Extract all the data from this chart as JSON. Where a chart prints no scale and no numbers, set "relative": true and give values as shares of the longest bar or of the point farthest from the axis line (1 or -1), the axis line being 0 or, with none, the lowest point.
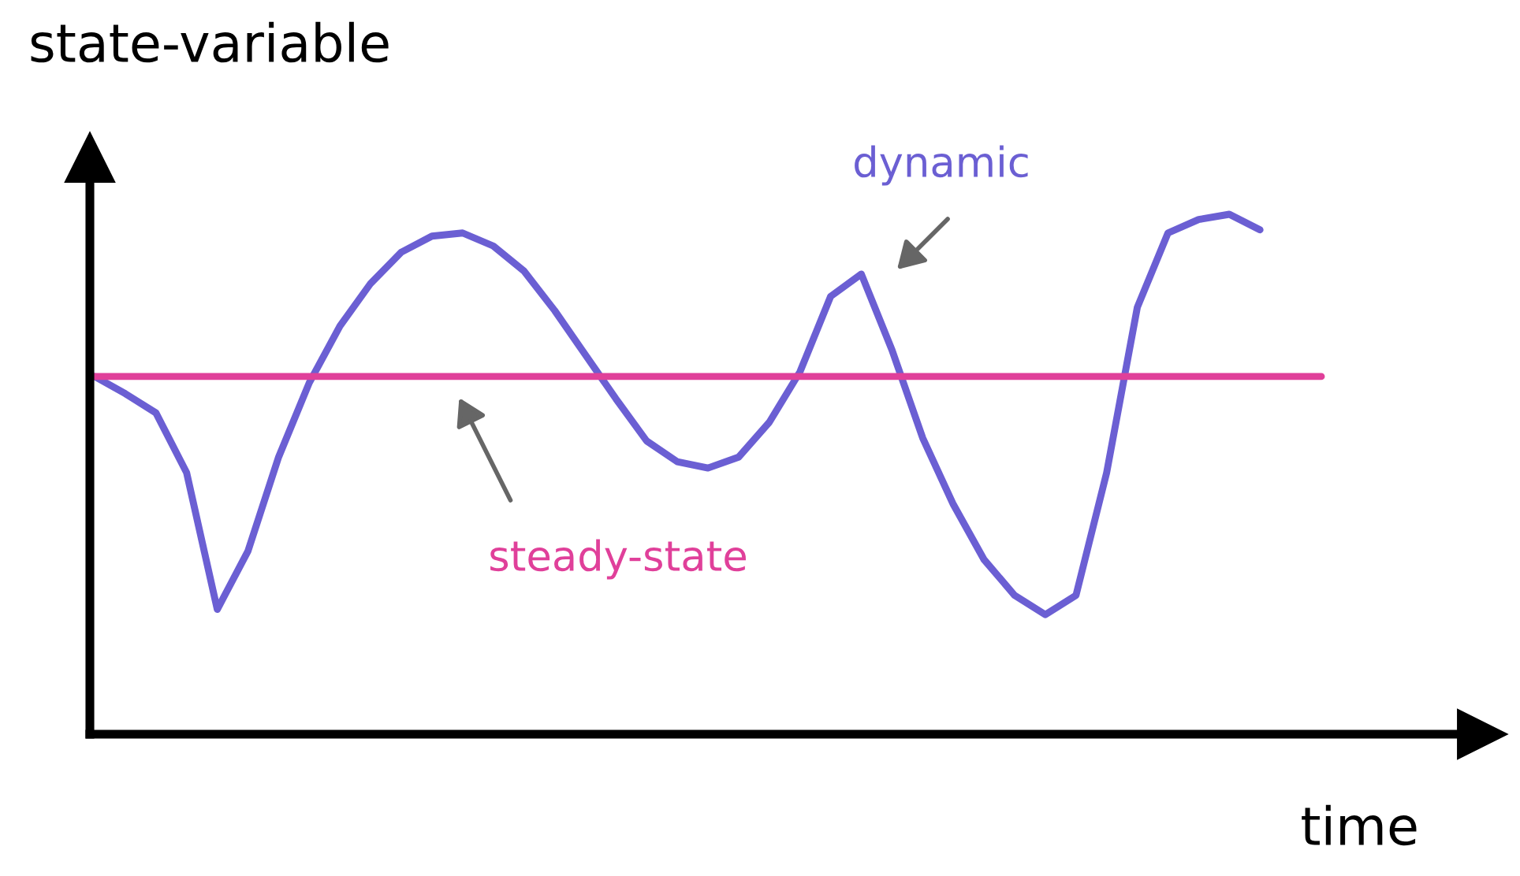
{
  "chart_data": {
    "type": "line",
    "relative": true,
    "xlabel": "time",
    "ylabel": "state-variable",
    "marker": "none",
    "line_style": "solid",
    "categories": [
      null,
      null,
      null,
      null,
      null,
      null,
      null,
      null,
      null,
      null,
      null,
      null,
      null,
      null,
      null,
      null,
      null,
      null,
      null,
      null,
      null,
      null,
      null,
      null,
      null,
      null,
      null,
      null,
      null,
      null,
      null,
      null,
      null,
      null,
      null,
      null,
      null,
      null,
      null,
      null,
      null
    ],
    "series": [
      {
        "name": "dynamic",
        "color": "#6b5fd3",
        "values": [
          0.688,
          0.655,
          0.618,
          0.503,
          0.24,
          0.352,
          0.533,
          0.676,
          0.785,
          0.867,
          0.927,
          0.958,
          0.964,
          0.939,
          0.891,
          0.815,
          0.73,
          0.645,
          0.564,
          0.524,
          0.512,
          0.533,
          0.6,
          0.697,
          0.842,
          0.885,
          0.739,
          0.57,
          0.442,
          0.336,
          0.267,
          0.23,
          0.267,
          0.503,
          0.821,
          0.964,
          0.99,
          1.0,
          0.97,
          null,
          null
        ]
      },
      {
        "name": "steady-state",
        "color": "#e0409a",
        "values": [
          0.688,
          0.688,
          0.688,
          0.688,
          0.688,
          0.688,
          0.688,
          0.688,
          0.688,
          0.688,
          0.688,
          0.688,
          0.688,
          0.688,
          0.688,
          0.688,
          0.688,
          0.688,
          0.688,
          0.688,
          0.688,
          0.688,
          0.688,
          0.688,
          0.688,
          0.688,
          0.688,
          0.688,
          0.688,
          0.688,
          0.688,
          0.688,
          0.688,
          0.688,
          0.688,
          0.688,
          0.688,
          0.688,
          0.688,
          0.688,
          0.688
        ]
      }
    ]
  }
}
